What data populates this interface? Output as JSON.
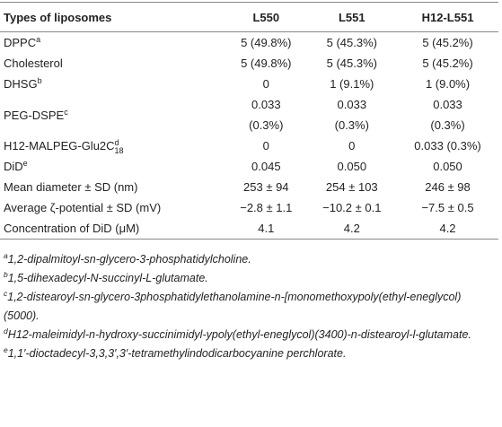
{
  "table": {
    "header": [
      "Types of liposomes",
      "L550",
      "L551",
      "H12-L551"
    ],
    "rows": [
      {
        "label": {
          "text": "DPPC",
          "sup": "a"
        },
        "cells": [
          [
            "5 (49.8%)"
          ],
          [
            "5 (45.3%)"
          ],
          [
            "5 (45.2%)"
          ]
        ]
      },
      {
        "label": {
          "text": "Cholesterol"
        },
        "cells": [
          [
            "5 (49.8%)"
          ],
          [
            "5 (45.3%)"
          ],
          [
            "5 (45.2%)"
          ]
        ]
      },
      {
        "label": {
          "text": "DHSG",
          "sup": "b"
        },
        "cells": [
          [
            "0"
          ],
          [
            "1 (9.1%)"
          ],
          [
            "1 (9.0%)"
          ]
        ]
      },
      {
        "label": {
          "text": "PEG-DSPE",
          "sup": "c"
        },
        "cells": [
          [
            "0.033",
            "(0.3%)"
          ],
          [
            "0.033",
            "(0.3%)"
          ],
          [
            "0.033",
            "(0.3%)"
          ]
        ]
      },
      {
        "label": {
          "text": "H12-MALPEG-Glu2C",
          "sup": "d",
          "sub": "18"
        },
        "cells": [
          [
            "0"
          ],
          [
            "0"
          ],
          [
            "0.033 (0.3%)"
          ]
        ]
      },
      {
        "label": {
          "text": "DiD",
          "sup": "e"
        },
        "cells": [
          [
            "0.045"
          ],
          [
            "0.050"
          ],
          [
            "0.050"
          ]
        ]
      },
      {
        "label": {
          "text": "Mean diameter ± SD (nm)"
        },
        "cells": [
          [
            "253 ± 94"
          ],
          [
            "254 ± 103"
          ],
          [
            "246 ± 98"
          ]
        ]
      },
      {
        "label": {
          "text": "Average ζ-potential ± SD (mV)"
        },
        "cells": [
          [
            "−2.8 ± 1.1"
          ],
          [
            "−10.2 ± 0.1"
          ],
          [
            "−7.5 ± 0.5"
          ]
        ]
      },
      {
        "label": {
          "text": "Concentration of DiD (μM)"
        },
        "cells": [
          [
            "4.1"
          ],
          [
            "4.2"
          ],
          [
            "4.2"
          ]
        ]
      }
    ]
  },
  "footnotes": [
    {
      "marker": "a",
      "text": "1,2-dipalmitoyl-sn-glycero-3-phosphatidylcholine."
    },
    {
      "marker": "b",
      "text": "1,5-dihexadecyl-N-succinyl-L-glutamate."
    },
    {
      "marker": "c",
      "text": "1,2-distearoyl-sn-glycero-3phosphatidylethanolamine-n-[monomethoxypoly(ethyl-eneglycol)(5000)."
    },
    {
      "marker": "d",
      "text": "H12-maleimidyl-n-hydroxy-succinimidyl-ypoly(ethyl-eneglycol)(3400)-n-distearoyl-l-glutamate."
    },
    {
      "marker": "e",
      "text": "1,1′-dioctadecyl-3,3,3′,3′-tetramethylindodicarbocyanine perchlorate."
    }
  ]
}
